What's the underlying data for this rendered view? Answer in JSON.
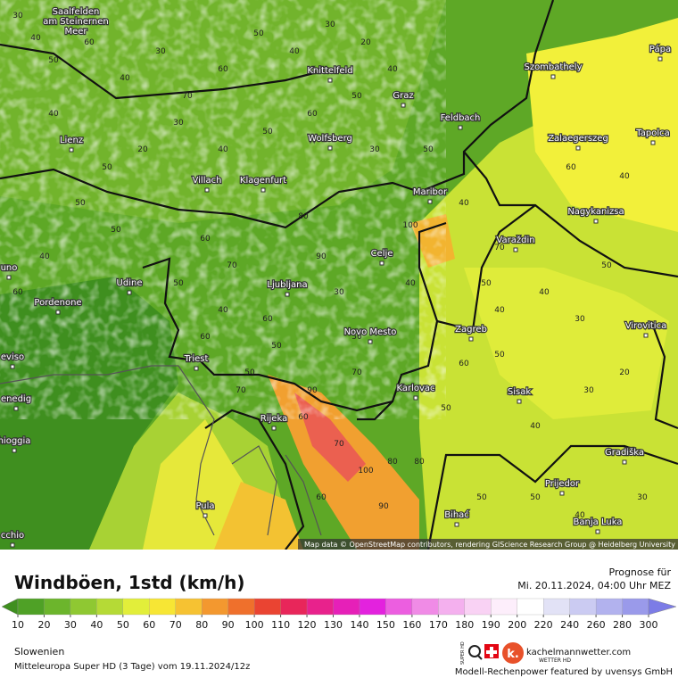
{
  "map": {
    "attribution": "Map data © OpenStreetMap contributors, rendering GIScience Research Group @ Heidelberg University",
    "cities": [
      {
        "lines": [
          "Saalfelden",
          "am Steinernen",
          "Meer"
        ]
      },
      {
        "lines": [
          "Knittelfeld"
        ]
      },
      {
        "lines": [
          "Szombathely"
        ]
      },
      {
        "lines": [
          "Pápa"
        ]
      },
      {
        "lines": [
          "Graz"
        ]
      },
      {
        "lines": [
          "Feldbach"
        ]
      },
      {
        "lines": [
          "Lienz"
        ]
      },
      {
        "lines": [
          "Wolfsberg"
        ]
      },
      {
        "lines": [
          "Zalaegerszeg"
        ]
      },
      {
        "lines": [
          "Tapolca"
        ]
      },
      {
        "lines": [
          "Villach"
        ]
      },
      {
        "lines": [
          "Klagenfurt"
        ]
      },
      {
        "lines": [
          "Maribor"
        ]
      },
      {
        "lines": [
          "Nagykanizsa"
        ]
      },
      {
        "lines": [
          "Varaždin"
        ]
      },
      {
        "lines": [
          "Celje"
        ]
      },
      {
        "lines": [
          "Udine"
        ]
      },
      {
        "lines": [
          "Ljubljana"
        ]
      },
      {
        "lines": [
          "Pordenone"
        ]
      },
      {
        "lines": [
          "Zagreb"
        ]
      },
      {
        "lines": [
          "Virovitica"
        ]
      },
      {
        "lines": [
          "Novo Mesto"
        ]
      },
      {
        "lines": [
          "Triest"
        ]
      },
      {
        "lines": [
          "eviso"
        ]
      },
      {
        "lines": [
          "enedig"
        ]
      },
      {
        "lines": [
          "Karlovac"
        ]
      },
      {
        "lines": [
          "Sisak"
        ]
      },
      {
        "lines": [
          "Rijeka"
        ]
      },
      {
        "lines": [
          "hioggia"
        ]
      },
      {
        "lines": [
          "Gradiška"
        ]
      },
      {
        "lines": [
          "Prijedor"
        ]
      },
      {
        "lines": [
          "Pula"
        ]
      },
      {
        "lines": [
          "Bihać"
        ]
      },
      {
        "lines": [
          "Banja Luka"
        ]
      },
      {
        "lines": [
          "uno"
        ]
      },
      {
        "lines": [
          "cchio"
        ]
      }
    ],
    "wind_labels": [
      30,
      40,
      50,
      60,
      40,
      30,
      70,
      60,
      50,
      40,
      30,
      20,
      40,
      50,
      60,
      50,
      40,
      30,
      20,
      50,
      40,
      50,
      60,
      70,
      80,
      90,
      100,
      40,
      30,
      50,
      50,
      40,
      60,
      50,
      40,
      30,
      50,
      40,
      60,
      70,
      80,
      100,
      90,
      70,
      60,
      50,
      40,
      50,
      60,
      50,
      40,
      30,
      20,
      30,
      40,
      50,
      50,
      60,
      80,
      70,
      50,
      40,
      30,
      50,
      60,
      70,
      50,
      40,
      60,
      90
    ]
  },
  "footer": {
    "title": "Windböen, 1std (km/h)",
    "forecast_label": "Prognose für",
    "forecast_time": "Mi. 20.11.2024, 04:00 Uhr MEZ",
    "region": "Slowenien",
    "model": "Mitteleuropa Super HD (3 Tage) vom 19.11.2024/12z",
    "brand": "kachelmannwetter.com",
    "brand_sub": "WETTER HD",
    "logo_letter": "k.",
    "super_hd": "SUPER HD",
    "sponsor": "Modell-Rechenpower featured by uvensys GmbH"
  },
  "legend": {
    "labels": [
      10,
      20,
      30,
      40,
      50,
      60,
      70,
      80,
      90,
      100,
      110,
      120,
      130,
      140,
      150,
      160,
      170,
      180,
      190,
      200,
      220,
      240,
      260,
      280,
      300
    ],
    "colors": [
      "#3f8f1f",
      "#4fa126",
      "#6cb52c",
      "#8fc832",
      "#b5da36",
      "#e2ee3a",
      "#f7e634",
      "#f6c232",
      "#f3982f",
      "#ef702c",
      "#ea4432",
      "#e8265a",
      "#e8228c",
      "#e620b8",
      "#e322de",
      "#ec5ee0",
      "#f08be6",
      "#f4b0ee",
      "#f9d2f4",
      "#fdeefb",
      "#ffffff",
      "#e2e2f6",
      "#cbcbf2",
      "#b2b2ee",
      "#9a9aea",
      "#7c7ce6"
    ]
  }
}
